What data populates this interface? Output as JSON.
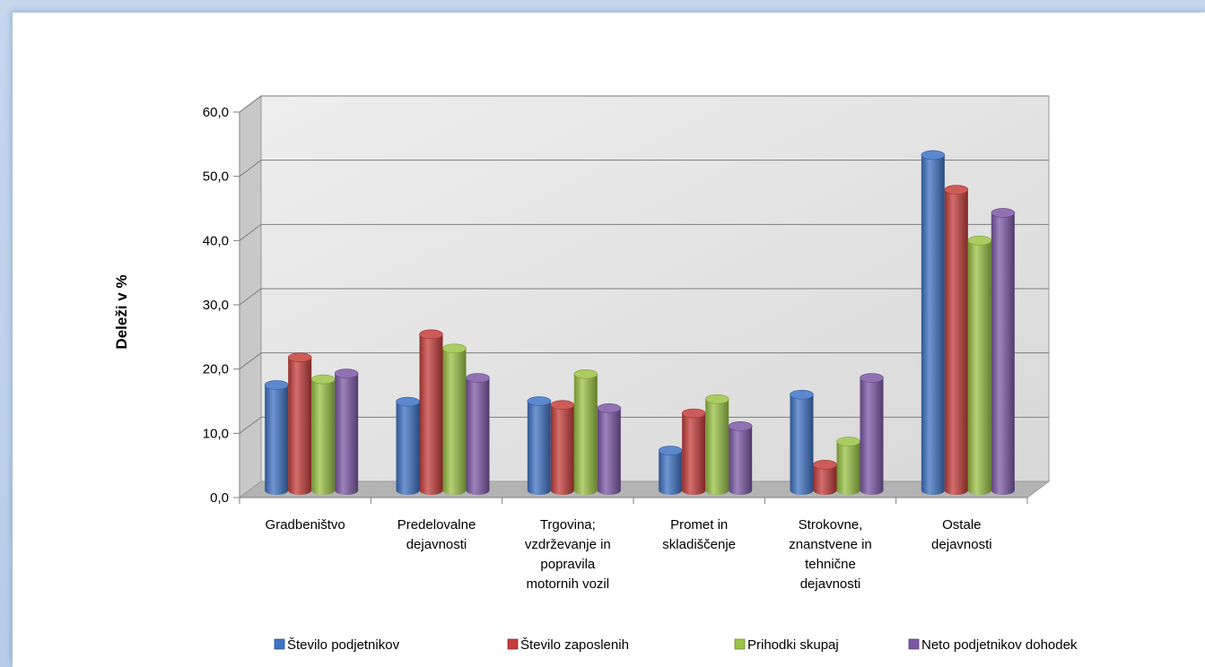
{
  "chart_data": {
    "type": "bar",
    "title": "",
    "xlabel": "",
    "ylabel": "Deleži v %",
    "ylim": [
      0,
      60
    ],
    "yticks": [
      "0,0",
      "10,0",
      "20,0",
      "30,0",
      "40,0",
      "50,0",
      "60,0"
    ],
    "grid": true,
    "legend_position": "bottom",
    "categories": [
      [
        "Gradbeništvo"
      ],
      [
        "Predelovalne",
        "dejavnosti"
      ],
      [
        "Trgovina;",
        "vzdrževanje in",
        "popravila",
        "motornih vozil"
      ],
      [
        "Promet in",
        "skladiščenje"
      ],
      [
        "Strokovne,",
        "znanstvene in",
        "tehnične",
        "dejavnosti"
      ],
      [
        "Ostale",
        "dejavnosti"
      ]
    ],
    "series": [
      {
        "name": "Število podjetnikov",
        "color": "#3f73c4",
        "values": [
          16.4,
          13.8,
          13.9,
          6.2,
          14.9,
          52.2
        ]
      },
      {
        "name": "Število zaposlenih",
        "color": "#c43e3b",
        "values": [
          20.7,
          24.3,
          13.3,
          12.0,
          4.0,
          46.8
        ]
      },
      {
        "name": "Prihodki skupaj",
        "color": "#9bc345",
        "values": [
          17.3,
          22.1,
          18.1,
          14.2,
          7.6,
          38.9
        ]
      },
      {
        "name": "Neto podjetnikov dohodek",
        "color": "#7c59a6",
        "values": [
          18.2,
          17.5,
          12.8,
          10.0,
          17.5,
          43.2
        ]
      }
    ]
  }
}
